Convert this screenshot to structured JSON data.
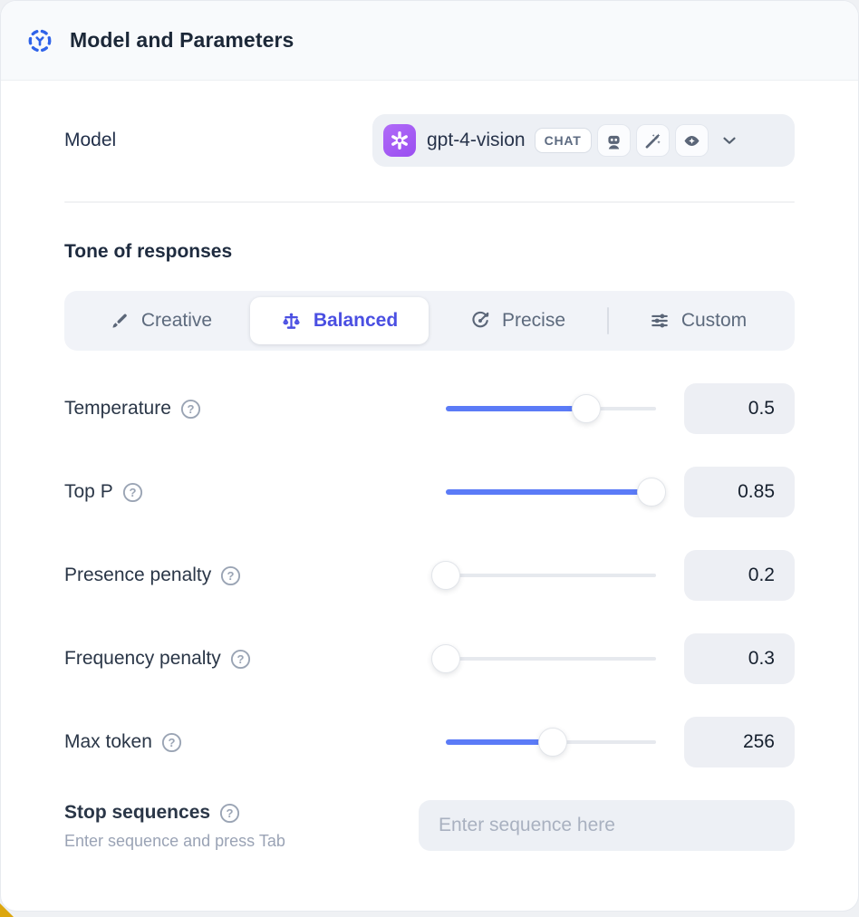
{
  "header": {
    "title": "Model and Parameters"
  },
  "model_row": {
    "label": "Model",
    "selected_model": "gpt-4-vision",
    "type_badge": "CHAT",
    "capability_icons": [
      "robot-icon",
      "magic-wand-icon",
      "vision-eye-icon"
    ],
    "provider_icon": "openai-logo"
  },
  "tone": {
    "heading": "Tone of responses",
    "tabs": [
      {
        "label": "Creative",
        "icon": "paintbrush-icon",
        "selected": false
      },
      {
        "label": "Balanced",
        "icon": "balance-scale-icon",
        "selected": true
      },
      {
        "label": "Precise",
        "icon": "target-dart-icon",
        "selected": false
      },
      {
        "label": "Custom",
        "icon": "sliders-icon",
        "selected": false
      }
    ]
  },
  "parameters": [
    {
      "label": "Temperature",
      "value": "0.5",
      "fill_pct": 67
    },
    {
      "label": "Top P",
      "value": "0.85",
      "fill_pct": 98
    },
    {
      "label": "Presence penalty",
      "value": "0.2",
      "fill_pct": 0
    },
    {
      "label": "Frequency penalty",
      "value": "0.3",
      "fill_pct": 0
    },
    {
      "label": "Max token",
      "value": "256",
      "fill_pct": 51
    }
  ],
  "stop_sequences": {
    "label": "Stop sequences",
    "hint": "Enter sequence and press Tab",
    "placeholder": "Enter sequence here"
  },
  "colors": {
    "accent_blue": "#4a4fe2",
    "slider_blue": "#5b7bf7",
    "provider_purple": "#9f55f1",
    "header_bg": "#f8fafc",
    "field_bg": "#edf0f5",
    "dark_text": "#1c2838",
    "muted_text": "#5d6a7d",
    "corner_yellow": "#dca60e"
  }
}
